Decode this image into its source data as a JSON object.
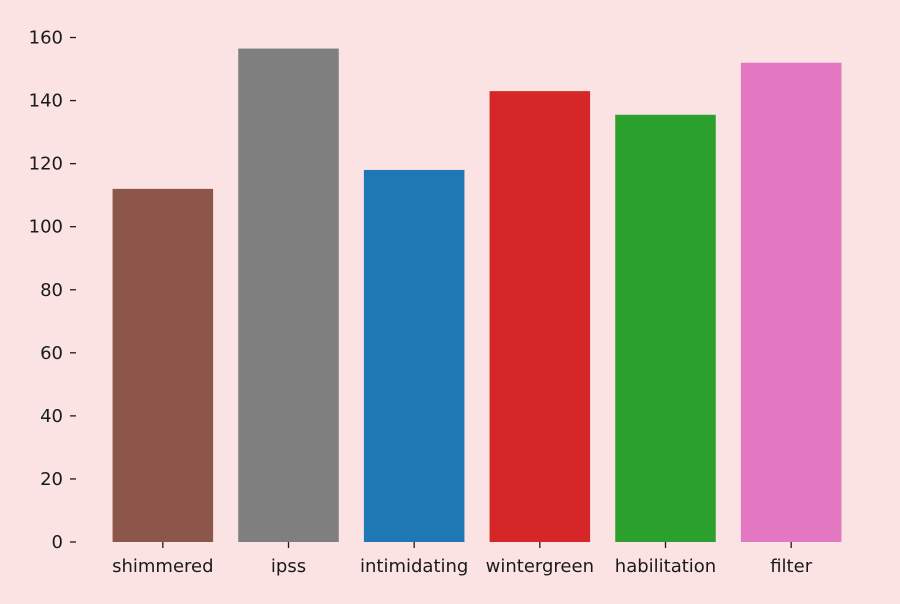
{
  "background_color": "#fbe3e4",
  "chart_data": {
    "type": "bar",
    "title": "",
    "xlabel": "",
    "ylabel": "",
    "categories": [
      "shimmered",
      "ipss",
      "intimidating",
      "wintergreen",
      "habilitation",
      "filter"
    ],
    "values": [
      112,
      156.5,
      118,
      143,
      135.5,
      152
    ],
    "colors": [
      "#8c564b",
      "#7f7f7f",
      "#1f77b4",
      "#d62728",
      "#2ca02c",
      "#e377c2"
    ],
    "ylim": [
      0,
      165
    ],
    "yticks": [
      0,
      20,
      40,
      60,
      80,
      100,
      120,
      140,
      160
    ],
    "grid": false,
    "legend": "none"
  }
}
